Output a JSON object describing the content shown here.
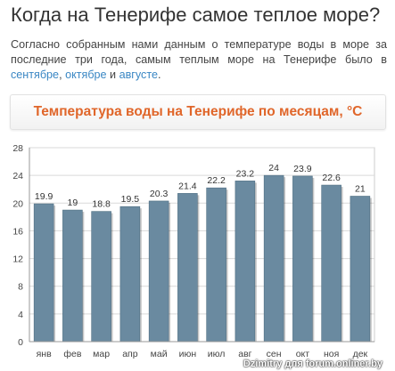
{
  "page": {
    "title": "Когда на Тенерифе самое теплое море?",
    "intro_text": "Согласно собранным нами данным о температуре воды в море за последние три года, самым теплым море на Тенерифе было в",
    "intro_sep1": ",",
    "intro_sep2": "и",
    "intro_end": ".",
    "intro_links": [
      "сентябре",
      "октябре",
      "августе"
    ],
    "link_color": "#3a87c4"
  },
  "chart_data": {
    "type": "bar",
    "title": "Температура воды на Тенерифе по месяцам, °C",
    "categories": [
      "янв",
      "фев",
      "мар",
      "апр",
      "май",
      "июн",
      "июл",
      "авг",
      "сен",
      "окт",
      "ноя",
      "дек"
    ],
    "values": [
      19.9,
      19,
      18.8,
      19.5,
      20.3,
      21.4,
      22.2,
      23.2,
      24,
      23.9,
      22.6,
      21
    ],
    "value_labels": [
      "19.9",
      "19",
      "18.8",
      "19.5",
      "20.3",
      "21.4",
      "22.2",
      "23.2",
      "24",
      "23.9",
      "22.6",
      "21"
    ],
    "ylim": [
      0,
      28
    ],
    "yticks": [
      "0",
      "4",
      "8",
      "12",
      "16",
      "20",
      "24",
      "28"
    ],
    "grid": true,
    "bar_color": "#6a8aa0",
    "title_color": "#e0662a"
  },
  "watermark": "Dzimitry для forum.onliner.by"
}
